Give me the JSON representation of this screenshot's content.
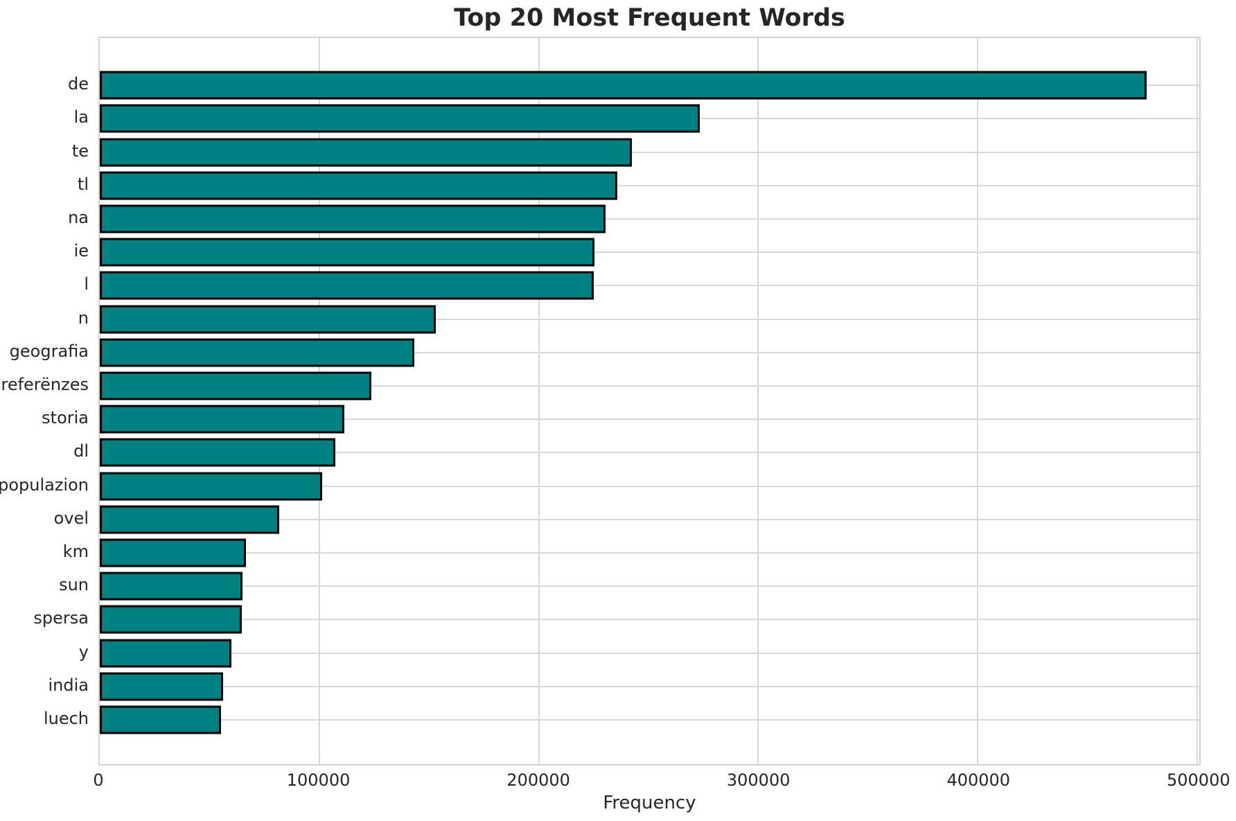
{
  "figure": {
    "title": "Top 20 Most Frequent Words",
    "x_axis_label": "Frequency"
  },
  "chart_data": {
    "type": "bar",
    "orientation": "horizontal",
    "title": "Top 20 Most Frequent Words",
    "xlabel": "Frequency",
    "ylabel": "",
    "categories": [
      "de",
      "la",
      "te",
      "tl",
      "na",
      "ie",
      "l",
      "n",
      "geografia",
      "referënzes",
      "storia",
      "dl",
      "populazion",
      "ovel",
      "km",
      "sun",
      "spersa",
      "y",
      "india",
      "luech"
    ],
    "values": [
      477000,
      273500,
      242600,
      235900,
      230400,
      225300,
      225000,
      153100,
      143400,
      123600,
      111300,
      107300,
      101300,
      81900,
      66700,
      65000,
      64600,
      60100,
      56100,
      55400
    ],
    "xlim": [
      0,
      501000
    ],
    "x_ticks": [
      0,
      100000,
      200000,
      300000,
      400000,
      500000
    ],
    "x_tick_labels": [
      "0",
      "100000",
      "200000",
      "300000",
      "400000",
      "500000"
    ],
    "grid": "both",
    "legend_position": "none",
    "bar_color": "#008080",
    "bar_edge_color": "#000000",
    "grid_color": "#d8d8d8",
    "background_color": "#ffffff"
  }
}
